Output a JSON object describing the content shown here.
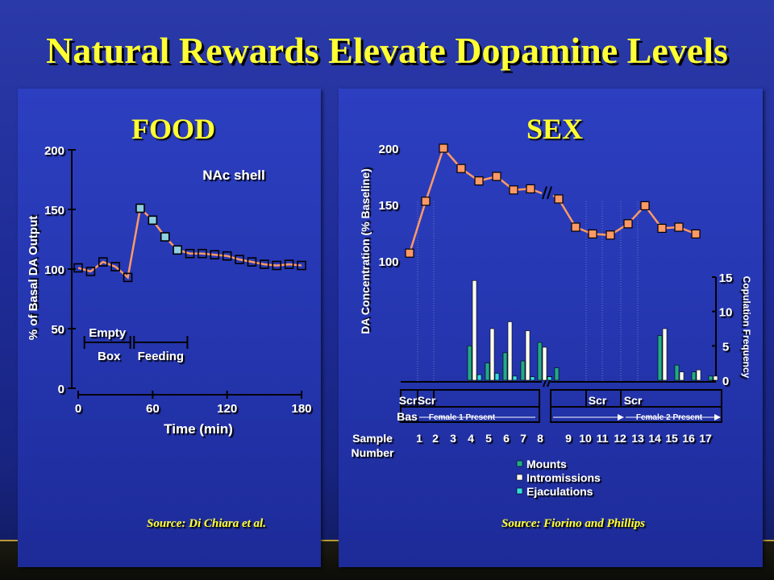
{
  "slide": {
    "title": "Natural Rewards Elevate Dopamine Levels",
    "colors": {
      "title": "#ffff33",
      "line": "#ff9966",
      "marker_food_active": "#8fd0e0",
      "mounts": "#22aa88",
      "intromissions": "#fffff0",
      "ejaculations": "#33dddd"
    }
  },
  "chart_data": [
    {
      "type": "line",
      "title": "FOOD",
      "annotation": "NAc shell",
      "xlabel": "Time (min)",
      "ylabel": "% of Basal DA Output",
      "xlim": [
        0,
        180
      ],
      "ylim": [
        0,
        200
      ],
      "xticks": [
        0,
        60,
        120,
        180
      ],
      "yticks": [
        0,
        50,
        100,
        150,
        200
      ],
      "x": [
        0,
        10,
        20,
        30,
        40,
        50,
        60,
        70,
        80,
        90,
        100,
        110,
        120,
        130,
        140,
        150,
        160,
        170,
        180
      ],
      "y": [
        101,
        98,
        106,
        102,
        93,
        151,
        141,
        127,
        116,
        113,
        113,
        112,
        111,
        108,
        106,
        104,
        103,
        104,
        103
      ],
      "highlighted_points": [
        5,
        6,
        7,
        8
      ],
      "periods": [
        {
          "label_top": "Empty",
          "label_bottom": "Box",
          "start": 5,
          "end": 42
        },
        {
          "label_top": "",
          "label_bottom": "Feeding",
          "start": 45,
          "end": 88
        }
      ],
      "source": "Source: Di Chiara et al."
    },
    {
      "type": "line",
      "title": "SEX",
      "xlabel": "Sample Number",
      "ylabel": "DA Concentration (% Baseline)",
      "y2label": "Copulation Frequency",
      "ylim": [
        100,
        200
      ],
      "yticks": [
        100,
        150,
        200
      ],
      "y2lim": [
        0,
        15
      ],
      "y2ticks": [
        0,
        5,
        10,
        15
      ],
      "categories": [
        "1",
        "2",
        "3",
        "4",
        "5",
        "6",
        "7",
        "8",
        "9",
        "10",
        "11",
        "12",
        "13",
        "14",
        "15",
        "16",
        "17"
      ],
      "y": [
        107,
        153,
        200,
        182,
        171,
        175,
        163,
        164,
        155,
        130,
        124,
        123,
        133,
        149,
        129,
        130,
        124
      ],
      "axis_break_after": 8,
      "bar_series": [
        {
          "name": "Mounts",
          "values": [
            0,
            0,
            5,
            2.5,
            4,
            2.8,
            5.5,
            1.8,
            0,
            0,
            0,
            0,
            0,
            6.5,
            2.2,
            1.2,
            0.6
          ]
        },
        {
          "name": "Intromissions",
          "values": [
            0,
            0,
            14.5,
            7.5,
            8.5,
            7.2,
            4.8,
            0,
            0,
            0,
            0,
            0,
            0,
            7.5,
            1.2,
            1.5,
            0.6
          ]
        },
        {
          "name": "Ejaculations",
          "values": [
            0,
            0,
            0.8,
            1,
            0.6,
            0.5,
            0.5,
            0,
            0,
            0,
            0,
            0,
            0,
            0,
            0,
            0,
            0
          ]
        }
      ],
      "phase_labels": {
        "scr": "Scr",
        "bas": "Bas",
        "female1": "Female 1 Present",
        "female2": "Female 2 Present"
      },
      "source": "Source: Fiorino and Phillips"
    }
  ]
}
